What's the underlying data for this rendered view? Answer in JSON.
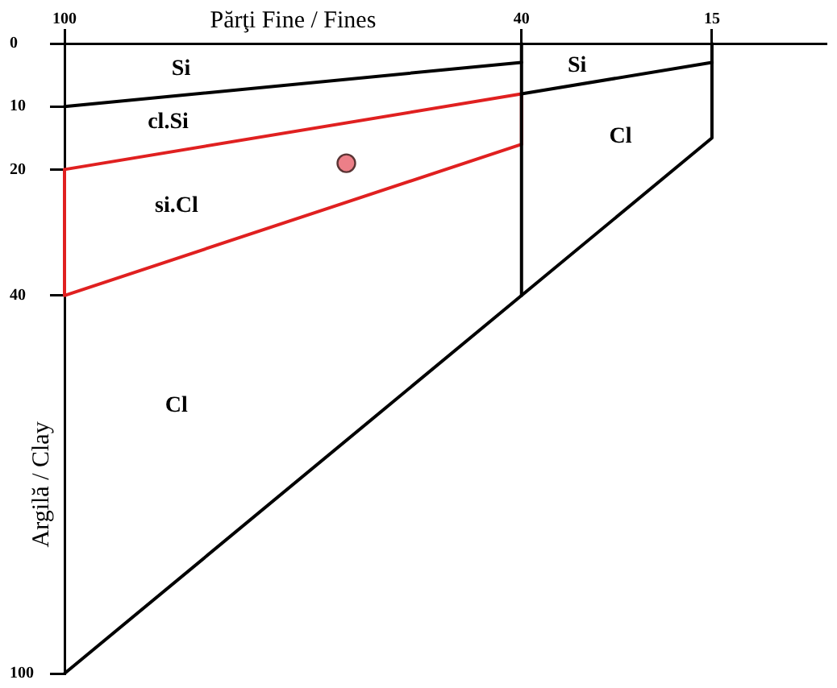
{
  "chart_data": {
    "type": "line",
    "xlabel": "Părţi Fine / Fines",
    "ylabel": "Argilă / Clay",
    "xlim": [
      100,
      0
    ],
    "xticks": [
      100,
      40,
      15
    ],
    "ylim": [
      100,
      0
    ],
    "yticks": [
      0,
      10,
      20,
      40,
      100
    ],
    "marker": "none",
    "series": [
      {
        "color": "#000000",
        "x": [
          100,
          40
        ],
        "values": [
          10,
          3
        ]
      },
      {
        "color": "#000000",
        "x": [
          40,
          40
        ],
        "values": [
          0,
          40
        ]
      },
      {
        "color": "#000000",
        "x": [
          40,
          15
        ],
        "values": [
          8,
          3
        ]
      },
      {
        "color": "#000000",
        "x": [
          15,
          15,
          100
        ],
        "values": [
          0,
          15,
          100
        ]
      },
      {
        "color": "#e02020",
        "x": [
          100,
          40,
          40
        ],
        "values": [
          20,
          8,
          16
        ]
      },
      {
        "color": "#e02020",
        "x": [
          40,
          100,
          100
        ],
        "values": [
          16,
          40,
          20
        ]
      },
      {
        "type": "scatter",
        "marker": "circle",
        "color": "#ec7f88",
        "x": [
          63
        ],
        "values": [
          19
        ]
      }
    ],
    "annotations": [
      "Si",
      "cl.Si",
      "si.Cl",
      "Cl",
      "Si",
      "Cl"
    ]
  }
}
